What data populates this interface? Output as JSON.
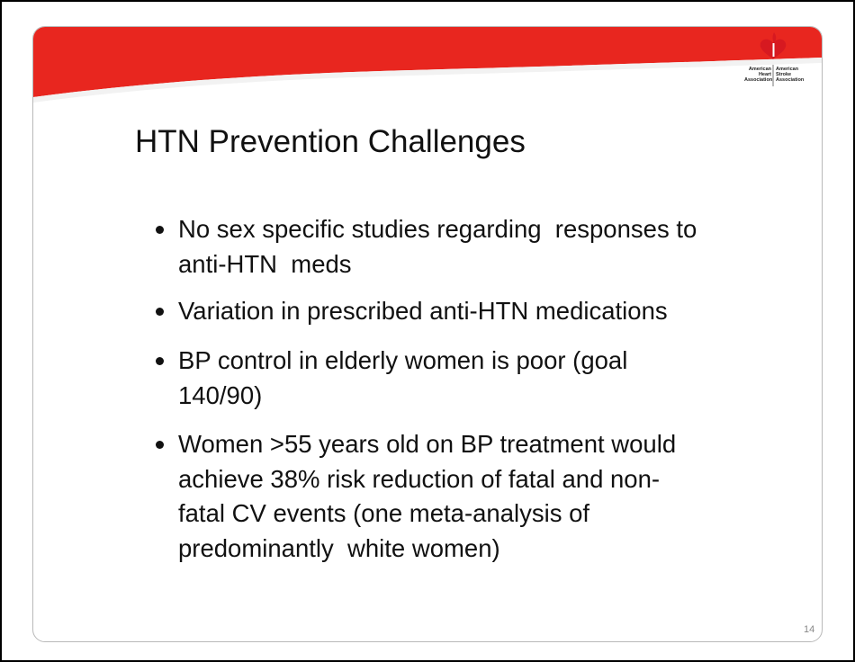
{
  "slide": {
    "logo": {
      "left": [
        "American",
        "Heart",
        "Association"
      ],
      "right": [
        "American",
        "Stroke",
        "Association"
      ]
    },
    "title": "HTN Prevention Challenges",
    "bullets": [
      [
        "No sex specific studies regarding  responses to",
        "anti-HTN  meds"
      ],
      [
        "Variation in prescribed anti-HTN medications"
      ],
      [
        "BP control in elderly women is poor (goal",
        "140/90)"
      ],
      [
        "Women >55 years old on BP treatment would",
        "achieve 38% risk reduction of fatal and non-",
        "fatal CV events (one meta-analysis of",
        "predominantly  white women)"
      ]
    ],
    "page_number": "14"
  }
}
